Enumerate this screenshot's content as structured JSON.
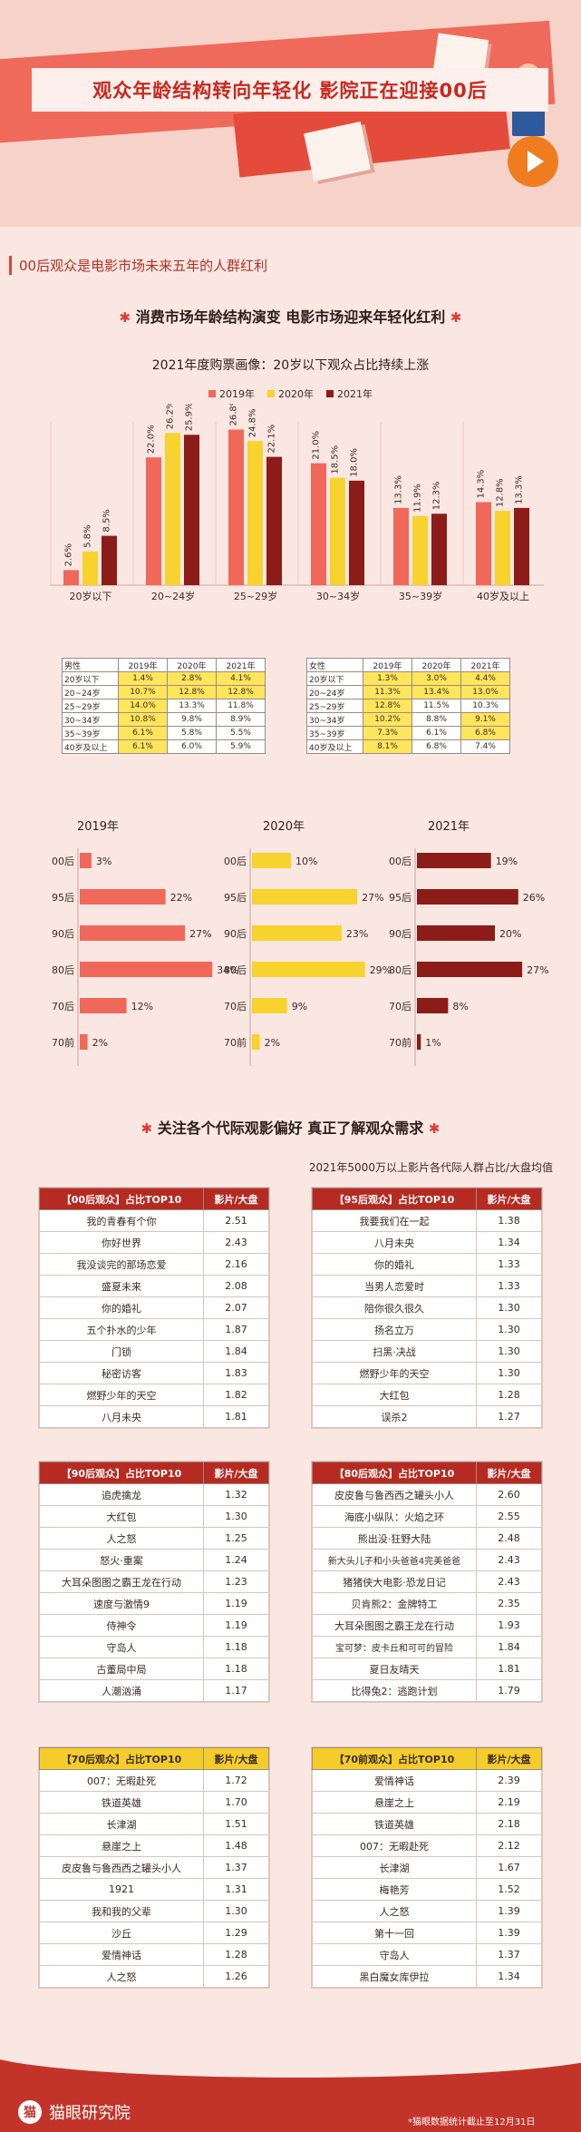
{
  "header": {
    "title": "观众年龄结构转向年轻化  影院正在迎接00后",
    "subtitle": "00后观众是电影市场未来五年的人群红利"
  },
  "section1": {
    "title": "消费市场年龄结构演变 电影市场迎来年轻化红利",
    "chart_title": "2021年度购票画像：20岁以下观众占比持续上涨"
  },
  "colors": {
    "y2019": "#f0685a",
    "y2020": "#f8d22d",
    "y2021": "#8b1c17"
  },
  "chart_data": [
    {
      "type": "bar",
      "title": "2021年度购票画像：20岁以下观众占比持续上涨",
      "categories": [
        "20岁以下",
        "20~24岁",
        "25~29岁",
        "30~34岁",
        "35~39岁",
        "40岁及以上"
      ],
      "series": [
        {
          "name": "2019年",
          "values": [
            2.6,
            22.0,
            26.8,
            21.0,
            13.3,
            14.3
          ]
        },
        {
          "name": "2020年",
          "values": [
            5.8,
            26.2,
            24.8,
            18.5,
            11.9,
            12.8
          ]
        },
        {
          "name": "2021年",
          "values": [
            8.5,
            25.9,
            22.1,
            18.0,
            12.3,
            13.3
          ]
        }
      ],
      "ylim": [
        0,
        30
      ]
    },
    {
      "type": "table",
      "title": "男性",
      "columns": [
        "男性",
        "2019年",
        "2020年",
        "2021年"
      ],
      "rows": [
        [
          "20岁以下",
          "1.4%",
          "2.8%",
          "4.1%"
        ],
        [
          "20~24岁",
          "10.7%",
          "12.8%",
          "12.8%"
        ],
        [
          "25~29岁",
          "14.0%",
          "13.3%",
          "11.8%"
        ],
        [
          "30~34岁",
          "10.8%",
          "9.8%",
          "8.9%"
        ],
        [
          "35~39岁",
          "6.1%",
          "5.8%",
          "5.5%"
        ],
        [
          "40岁及以上",
          "6.1%",
          "6.0%",
          "5.9%"
        ]
      ],
      "highlight": [
        [
          1,
          1
        ],
        [
          1,
          2
        ],
        [
          1,
          3
        ],
        [
          2,
          1
        ],
        [
          2,
          2
        ],
        [
          2,
          3
        ],
        [
          3,
          1
        ],
        [
          4,
          1
        ],
        [
          5,
          1
        ],
        [
          6,
          1
        ]
      ]
    },
    {
      "type": "table",
      "title": "女性",
      "columns": [
        "女性",
        "2019年",
        "2020年",
        "2021年"
      ],
      "rows": [
        [
          "20岁以下",
          "1.3%",
          "3.0%",
          "4.4%"
        ],
        [
          "20~24岁",
          "11.3%",
          "13.4%",
          "13.0%"
        ],
        [
          "25~29岁",
          "12.8%",
          "11.5%",
          "10.3%"
        ],
        [
          "30~34岁",
          "10.2%",
          "8.8%",
          "9.1%"
        ],
        [
          "35~39岁",
          "7.3%",
          "6.1%",
          "6.8%"
        ],
        [
          "40岁及以上",
          "8.1%",
          "6.8%",
          "7.4%"
        ]
      ],
      "highlight": [
        [
          1,
          1
        ],
        [
          1,
          2
        ],
        [
          1,
          3
        ],
        [
          2,
          1
        ],
        [
          2,
          2
        ],
        [
          2,
          3
        ],
        [
          3,
          1
        ],
        [
          4,
          1
        ],
        [
          4,
          3
        ],
        [
          5,
          1
        ],
        [
          5,
          3
        ],
        [
          6,
          1
        ]
      ]
    },
    {
      "type": "bar",
      "title": "2019年",
      "orientation": "horizontal",
      "categories": [
        "00后",
        "95后",
        "90后",
        "80后",
        "70后",
        "70前"
      ],
      "values": [
        3,
        22,
        27,
        34,
        12,
        2
      ],
      "color": "#f0685a"
    },
    {
      "type": "bar",
      "title": "2020年",
      "orientation": "horizontal",
      "categories": [
        "00后",
        "95后",
        "90后",
        "80后",
        "70后",
        "70前"
      ],
      "values": [
        10,
        27,
        23,
        29,
        9,
        2
      ],
      "color": "#f8d22d"
    },
    {
      "type": "bar",
      "title": "2021年",
      "orientation": "horizontal",
      "categories": [
        "00后",
        "95后",
        "90后",
        "80后",
        "70后",
        "70前"
      ],
      "values": [
        19,
        26,
        20,
        27,
        8,
        1
      ],
      "color": "#8b1c17"
    }
  ],
  "section2": {
    "title": "关注各个代际观影偏好 真正了解观众需求",
    "subtitle": "2021年5000万以上影片各代际人群占比/大盘均值"
  },
  "tops": [
    {
      "title": "【00后观众】占比TOP10",
      "col": "影片/大盘",
      "style": "red",
      "rows": [
        [
          "我的青春有个你",
          "2.51"
        ],
        [
          "你好世界",
          "2.43"
        ],
        [
          "我没谈完的那场恋爱",
          "2.16"
        ],
        [
          "盛夏未来",
          "2.08"
        ],
        [
          "你的婚礼",
          "2.07"
        ],
        [
          "五个扑水的少年",
          "1.87"
        ],
        [
          "门锁",
          "1.84"
        ],
        [
          "秘密访客",
          "1.83"
        ],
        [
          "燃野少年的天空",
          "1.82"
        ],
        [
          "八月未央",
          "1.81"
        ]
      ]
    },
    {
      "title": "【95后观众】占比TOP10",
      "col": "影片/大盘",
      "style": "red",
      "rows": [
        [
          "我要我们在一起",
          "1.38"
        ],
        [
          "八月未央",
          "1.34"
        ],
        [
          "你的婚礼",
          "1.33"
        ],
        [
          "当男人恋爱时",
          "1.33"
        ],
        [
          "陪你很久很久",
          "1.30"
        ],
        [
          "扬名立万",
          "1.30"
        ],
        [
          "扫黑·决战",
          "1.30"
        ],
        [
          "燃野少年的天空",
          "1.30"
        ],
        [
          "大红包",
          "1.28"
        ],
        [
          "误杀2",
          "1.27"
        ]
      ]
    },
    {
      "title": "【90后观众】占比TOP10",
      "col": "影片/大盘",
      "style": "red",
      "rows": [
        [
          "追虎擒龙",
          "1.32"
        ],
        [
          "大红包",
          "1.30"
        ],
        [
          "人之怒",
          "1.25"
        ],
        [
          "怒火·重案",
          "1.24"
        ],
        [
          "大耳朵图图之霸王龙在行动",
          "1.23"
        ],
        [
          "速度与激情9",
          "1.19"
        ],
        [
          "侍神令",
          "1.19"
        ],
        [
          "守岛人",
          "1.18"
        ],
        [
          "古董局中局",
          "1.18"
        ],
        [
          "人潮汹涌",
          "1.17"
        ]
      ]
    },
    {
      "title": "【80后观众】占比TOP10",
      "col": "影片/大盘",
      "style": "red",
      "rows": [
        [
          "皮皮鲁与鲁西西之罐头小人",
          "2.60"
        ],
        [
          "海底小纵队：火焰之环",
          "2.55"
        ],
        [
          "熊出没·狂野大陆",
          "2.48"
        ],
        [
          "新大头儿子和小头爸爸4完美爸爸",
          "2.43"
        ],
        [
          "猪猪侠大电影·恐龙日记",
          "2.43"
        ],
        [
          "贝肯熊2：金牌特工",
          "2.35"
        ],
        [
          "大耳朵图图之霸王龙在行动",
          "1.93"
        ],
        [
          "宝可梦：皮卡丘和可可的冒险",
          "1.84"
        ],
        [
          "夏日友晴天",
          "1.81"
        ],
        [
          "比得兔2：逃跑计划",
          "1.79"
        ]
      ]
    },
    {
      "title": "【70后观众】占比TOP10",
      "col": "影片/大盘",
      "style": "yellow",
      "rows": [
        [
          "007：无暇赴死",
          "1.72"
        ],
        [
          "铁道英雄",
          "1.70"
        ],
        [
          "长津湖",
          "1.51"
        ],
        [
          "悬崖之上",
          "1.48"
        ],
        [
          "皮皮鲁与鲁西西之罐头小人",
          "1.37"
        ],
        [
          "1921",
          "1.31"
        ],
        [
          "我和我的父辈",
          "1.30"
        ],
        [
          "沙丘",
          "1.29"
        ],
        [
          "爱情神话",
          "1.28"
        ],
        [
          "人之怒",
          "1.26"
        ]
      ]
    },
    {
      "title": "【70前观众】占比TOP10",
      "col": "影片/大盘",
      "style": "yellow",
      "rows": [
        [
          "爱情神话",
          "2.39"
        ],
        [
          "悬崖之上",
          "2.19"
        ],
        [
          "铁道英雄",
          "2.18"
        ],
        [
          "007：无暇赴死",
          "2.12"
        ],
        [
          "长津湖",
          "1.67"
        ],
        [
          "梅艳芳",
          "1.52"
        ],
        [
          "人之怒",
          "1.39"
        ],
        [
          "第十一回",
          "1.39"
        ],
        [
          "守岛人",
          "1.37"
        ],
        [
          "黑白魔女库伊拉",
          "1.34"
        ]
      ]
    }
  ],
  "footer": {
    "brand": "猫眼研究院",
    "note": "*猫眼数据统计截止至12月31日"
  }
}
